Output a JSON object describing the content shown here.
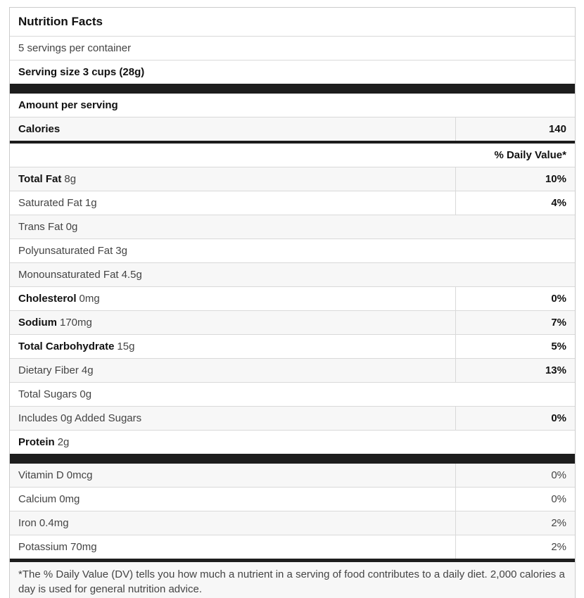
{
  "colors": {
    "bar": "#1d1d1d",
    "shade": "#f7f7f7",
    "border": "#d9d9d9",
    "outer": "#cccccc",
    "text": "#444444",
    "text-bold": "#111111"
  },
  "header": {
    "title": "Nutrition Facts"
  },
  "serving": {
    "servings_per_container": "5 servings per container",
    "serving_size": "Serving size 3 cups (28g)"
  },
  "calories": {
    "section_label": "Amount per serving",
    "label": "Calories",
    "value": "140"
  },
  "daily_value": {
    "column_header": "% Daily Value*"
  },
  "nutrients": [
    {
      "name": "Total Fat",
      "amount": "8g",
      "dv": "10%",
      "emphasis": true
    },
    {
      "name": "Saturated Fat",
      "amount": "1g",
      "dv": "4%",
      "emphasis": false
    },
    {
      "name": "Trans Fat",
      "amount": "0g",
      "dv": "",
      "emphasis": false
    },
    {
      "name": "Polyunsaturated Fat",
      "amount": "3g",
      "dv": "",
      "emphasis": false
    },
    {
      "name": "Monounsaturated Fat",
      "amount": "4.5g",
      "dv": "",
      "emphasis": false
    },
    {
      "name": "Cholesterol",
      "amount": "0mg",
      "dv": "0%",
      "emphasis": true
    },
    {
      "name": "Sodium",
      "amount": "170mg",
      "dv": "7%",
      "emphasis": true
    },
    {
      "name": "Total Carbohydrate",
      "amount": "15g",
      "dv": "5%",
      "emphasis": true
    },
    {
      "name": "Dietary Fiber",
      "amount": "4g",
      "dv": "13%",
      "emphasis": false
    },
    {
      "name": "Total Sugars",
      "amount": "0g",
      "dv": "",
      "emphasis": false
    },
    {
      "name": "Includes 0g Added Sugars",
      "amount": "",
      "dv": "0%",
      "emphasis": false
    },
    {
      "name": "Protein",
      "amount": "2g",
      "dv": "",
      "emphasis": true
    }
  ],
  "micronutrients": [
    {
      "name": "Vitamin D",
      "amount": "0mcg",
      "dv": "0%",
      "emphasis": false
    },
    {
      "name": "Calcium",
      "amount": "0mg",
      "dv": "0%",
      "emphasis": false
    },
    {
      "name": "Iron",
      "amount": "0.4mg",
      "dv": "2%",
      "emphasis": false
    },
    {
      "name": "Potassium",
      "amount": "70mg",
      "dv": "2%",
      "emphasis": false
    }
  ],
  "footnote": {
    "text": "*The % Daily Value (DV) tells you how much a nutrient in a serving of food contributes to a daily diet. 2,000 calories a day is used for general nutrition advice."
  }
}
